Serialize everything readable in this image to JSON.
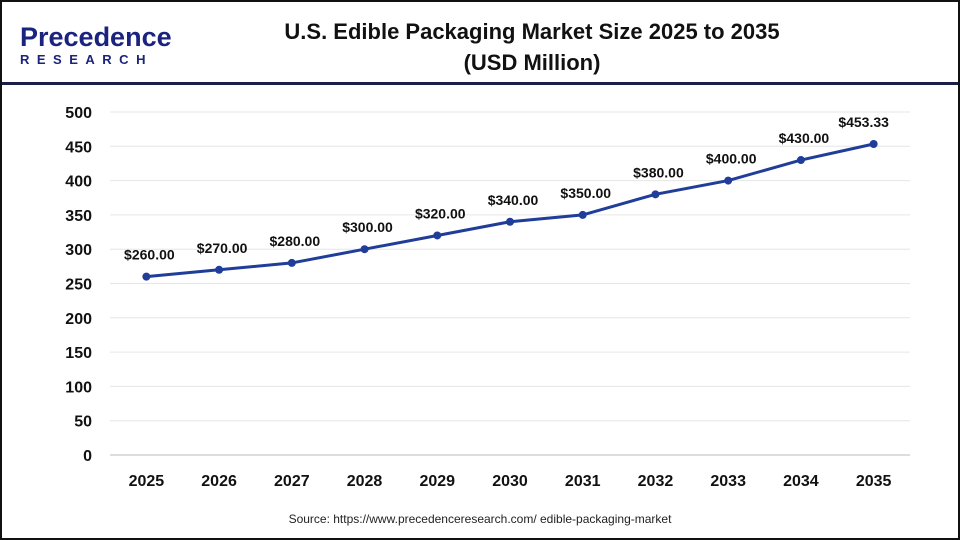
{
  "logo": {
    "line1": "Precedence",
    "line2": "RESEARCH"
  },
  "title_line1": "U.S. Edible Packaging Market Size 2025 to 2035",
  "title_line2": "(USD Million)",
  "source": "Source: https://www.precedenceresearch.com/ edible-packaging-market",
  "chart_data": {
    "type": "line",
    "title": "U.S. Edible Packaging Market Size 2025 to 2035 (USD Million)",
    "categories": [
      "2025",
      "2026",
      "2027",
      "2028",
      "2029",
      "2030",
      "2031",
      "2032",
      "2033",
      "2034",
      "2035"
    ],
    "values": [
      260,
      270,
      280,
      300,
      320,
      340,
      350,
      380,
      400,
      430,
      453.33
    ],
    "data_labels": [
      "$260.00",
      "$270.00",
      "$280.00",
      "$300.00",
      "$320.00",
      "$340.00",
      "$350.00",
      "$380.00",
      "$400.00",
      "$430.00",
      "$453.33"
    ],
    "ylim": [
      0,
      500
    ],
    "yticks": [
      0,
      50,
      100,
      150,
      200,
      250,
      300,
      350,
      400,
      450,
      500
    ],
    "grid": true,
    "line_color": "#1f3d99"
  }
}
